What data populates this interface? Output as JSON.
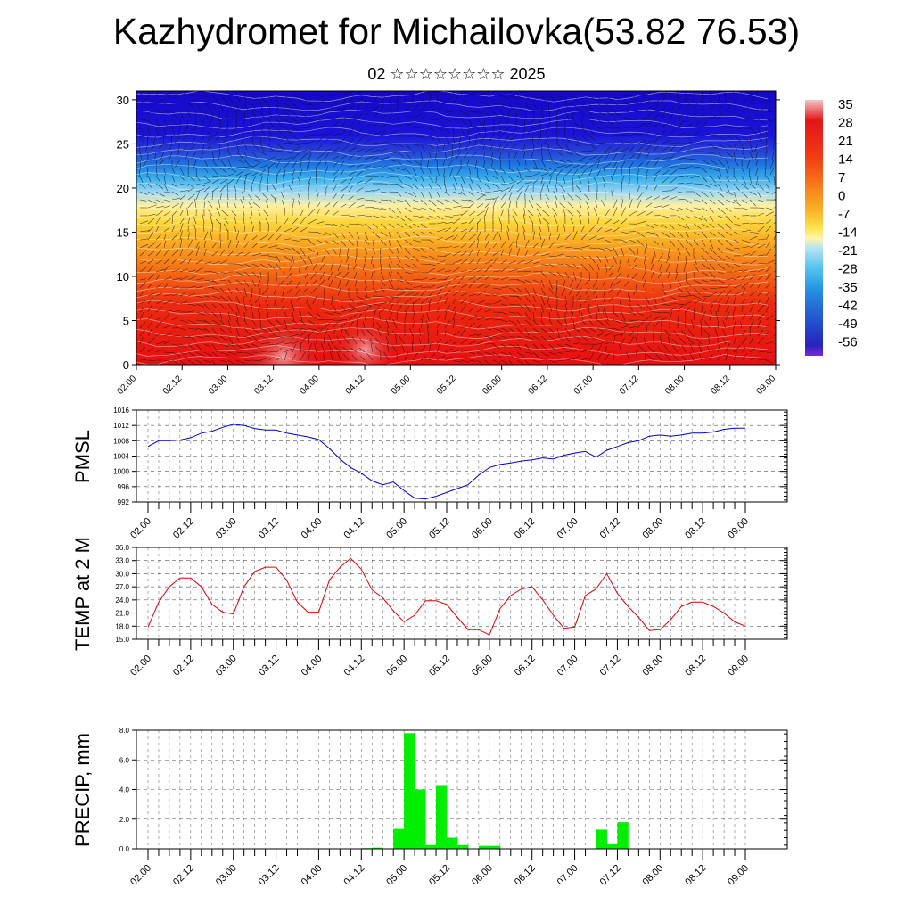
{
  "page": {
    "title": "Kazhydromet for Michailovka(53.82 76.53)",
    "subtitle": "02 ☆☆☆☆☆☆☆☆ 2025"
  },
  "time_ticks": [
    "02.00",
    "02.12",
    "03.00",
    "03.12",
    "04.00",
    "04.12",
    "05.00",
    "05.12",
    "06.00",
    "06.12",
    "07.00",
    "07.12",
    "08.00",
    "08.12",
    "09.00"
  ],
  "chart_data": [
    {
      "type": "heatmap",
      "id": "vertical-section",
      "y_ticks": [
        0,
        5,
        10,
        15,
        20,
        25,
        30
      ],
      "ylim": [
        0,
        31
      ],
      "colorbar_labels": [
        "35",
        "28",
        "21",
        "14",
        "7",
        "0",
        "-7",
        "-14",
        "-21",
        "-28",
        "-35",
        "-42",
        "-49",
        "-56"
      ],
      "colorbar_colors": [
        "#f2c6c6",
        "#e5141a",
        "#f23a12",
        "#f7781a",
        "#fab225",
        "#fde24a",
        "#fff5a8",
        "#b8e2f2",
        "#52c2ee",
        "#2493e4",
        "#2466d6",
        "#2340c8",
        "#2a22c0",
        "#7a28d8"
      ],
      "description_values": {
        "temperature_profile_by_level": [
          {
            "level": 0,
            "value": 30
          },
          {
            "level": 5,
            "value": 22
          },
          {
            "level": 10,
            "value": 14
          },
          {
            "level": 15,
            "value": 0
          },
          {
            "level": 17,
            "value": -10
          },
          {
            "level": 20,
            "value": -30
          },
          {
            "level": 23,
            "value": -48
          },
          {
            "level": 25,
            "value": -54
          },
          {
            "level": 31,
            "value": -56
          }
        ]
      }
    },
    {
      "type": "line",
      "id": "pmsl",
      "ylabel": "PMSL",
      "ylim": [
        992,
        1016
      ],
      "y_ticks": [
        992,
        996,
        1000,
        1004,
        1008,
        1012,
        1016
      ],
      "color": "#0000cc",
      "x": [
        0,
        1,
        2,
        3,
        4,
        5,
        6,
        7,
        8,
        9,
        10,
        11,
        12,
        13,
        14,
        15,
        16,
        17,
        18,
        19,
        20,
        21,
        22,
        23,
        24,
        25,
        26,
        27,
        28,
        29,
        30,
        31,
        32,
        33,
        34,
        35,
        36,
        37,
        38,
        39,
        40,
        41,
        42,
        43,
        44,
        45,
        46,
        47,
        48,
        49,
        50,
        51,
        52,
        53,
        54,
        55,
        56
      ],
      "values": [
        1006.5,
        1008,
        1008,
        1008.2,
        1008.8,
        1010,
        1010.5,
        1011.5,
        1012.3,
        1012,
        1011.2,
        1010.8,
        1010.8,
        1010,
        1009.5,
        1009,
        1008.3,
        1006,
        1003.2,
        1001,
        999.5,
        997.5,
        996.5,
        997.2,
        995,
        993,
        992.8,
        993.5,
        994.5,
        995.5,
        996.5,
        999,
        1001,
        1001.8,
        1002.2,
        1002.7,
        1003,
        1003.5,
        1003.2,
        1004.2,
        1004.8,
        1005.2,
        1003.7,
        1005.5,
        1006.5,
        1007.5,
        1008,
        1009.2,
        1009.5,
        1009.2,
        1009.5,
        1010,
        1010,
        1010.3,
        1011,
        1011.3,
        1011.3
      ]
    },
    {
      "type": "line",
      "id": "temp-2m",
      "ylabel": "TEMP at 2 M",
      "ylim": [
        15,
        36
      ],
      "y_ticks": [
        "15.0",
        "18.0",
        "21.0",
        "24.0",
        "27.0",
        "30.0",
        "33.0",
        "36.0"
      ],
      "color": "#dd0000",
      "x": [
        0,
        1,
        2,
        3,
        4,
        5,
        6,
        7,
        8,
        9,
        10,
        11,
        12,
        13,
        14,
        15,
        16,
        17,
        18,
        19,
        20,
        21,
        22,
        23,
        24,
        25,
        26,
        27,
        28,
        29,
        30,
        31,
        32,
        33,
        34,
        35,
        36,
        37,
        38,
        39,
        40,
        41,
        42,
        43,
        44,
        45,
        46,
        47,
        48,
        49,
        50,
        51,
        52,
        53,
        54,
        55,
        56
      ],
      "values": [
        17.8,
        23.5,
        27,
        29,
        29,
        27,
        23,
        21.2,
        20.8,
        27,
        30.5,
        31.5,
        31.5,
        28.5,
        23.5,
        21.2,
        21.2,
        28.5,
        31.5,
        33.5,
        31,
        26.3,
        24.5,
        21.5,
        19,
        20.5,
        23.8,
        23.8,
        23,
        20,
        17.2,
        17.2,
        16,
        22,
        25,
        26.5,
        27,
        24,
        20.5,
        17.5,
        17.8,
        25,
        26.5,
        30,
        25.5,
        22.5,
        20,
        17,
        17.2,
        19.5,
        22.5,
        23.5,
        23.5,
        22.5,
        21,
        19,
        18
      ]
    },
    {
      "type": "bar",
      "id": "precip",
      "ylabel": "PRECIP, mm",
      "ylim": [
        0,
        8
      ],
      "y_ticks": [
        "0.0",
        "2.0",
        "4.0",
        "6.0",
        "8.0"
      ],
      "color": "#00ee00",
      "x": [
        0,
        1,
        2,
        3,
        4,
        5,
        6,
        7,
        8,
        9,
        10,
        11,
        12,
        13,
        14,
        15,
        16,
        17,
        18,
        19,
        20,
        21,
        22,
        23,
        24,
        25,
        26,
        27,
        28,
        29,
        30,
        31,
        32,
        33,
        34,
        35,
        36,
        37,
        38,
        39,
        40,
        41,
        42,
        43,
        44,
        45,
        46,
        47,
        48,
        49,
        50,
        51,
        52,
        53,
        54,
        55
      ],
      "values": [
        0,
        0,
        0,
        0,
        0,
        0,
        0,
        0,
        0,
        0,
        0,
        0,
        0,
        0,
        0,
        0,
        0,
        0,
        0,
        0,
        0.05,
        0.08,
        0,
        1.35,
        7.8,
        4.0,
        0.25,
        4.3,
        0.75,
        0.25,
        0,
        0.2,
        0.2,
        0,
        0,
        0,
        0,
        0,
        0,
        0,
        0,
        0,
        1.3,
        0.3,
        1.8,
        0,
        0,
        0,
        0,
        0,
        0,
        0,
        0,
        0,
        0.02,
        0
      ]
    }
  ]
}
